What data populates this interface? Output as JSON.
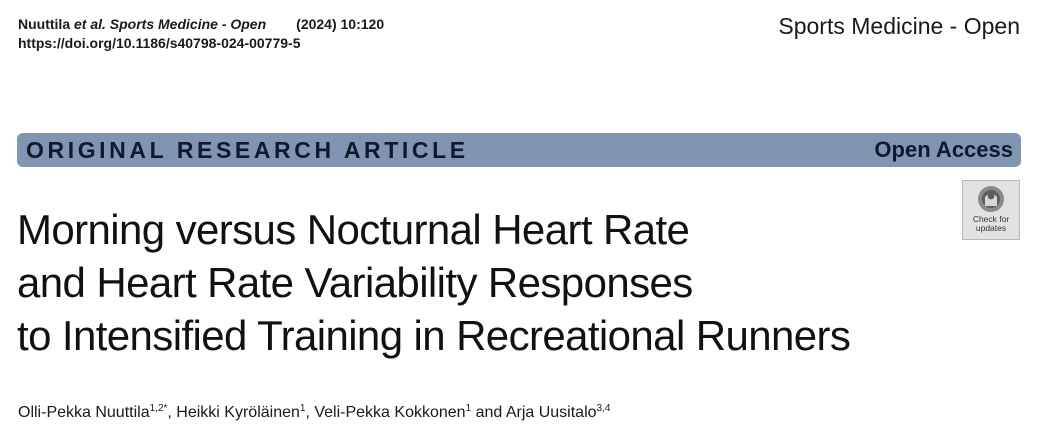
{
  "header": {
    "authors_short": "Nuuttila",
    "et_al_journal": "et al. Sports Medicine - Open",
    "year_volume": "(2024) 10:120",
    "doi": "https://doi.org/10.1186/s40798-024-00779-5",
    "journal_name": "Sports Medicine - Open"
  },
  "banner": {
    "article_type": "ORIGINAL RESEARCH ARTICLE",
    "access": "Open Access",
    "color": "#7f95b2"
  },
  "badge": {
    "icon": "check-for-updates-icon",
    "text": "Check for\nupdates"
  },
  "title_lines": [
    "Morning versus Nocturnal Heart Rate",
    "and Heart Rate Variability Responses",
    "to Intensified Training in Recreational Runners"
  ],
  "authors": [
    {
      "name": "Olli-Pekka Nuuttila",
      "affil": "1,2*",
      "sep": ", "
    },
    {
      "name": "Heikki Kyröläinen",
      "affil": "1",
      "sep": ", "
    },
    {
      "name": "Veli-Pekka Kokkonen",
      "affil": "1",
      "sep": " and "
    },
    {
      "name": "Arja Uusitalo",
      "affil": "3,4",
      "sep": ""
    }
  ]
}
